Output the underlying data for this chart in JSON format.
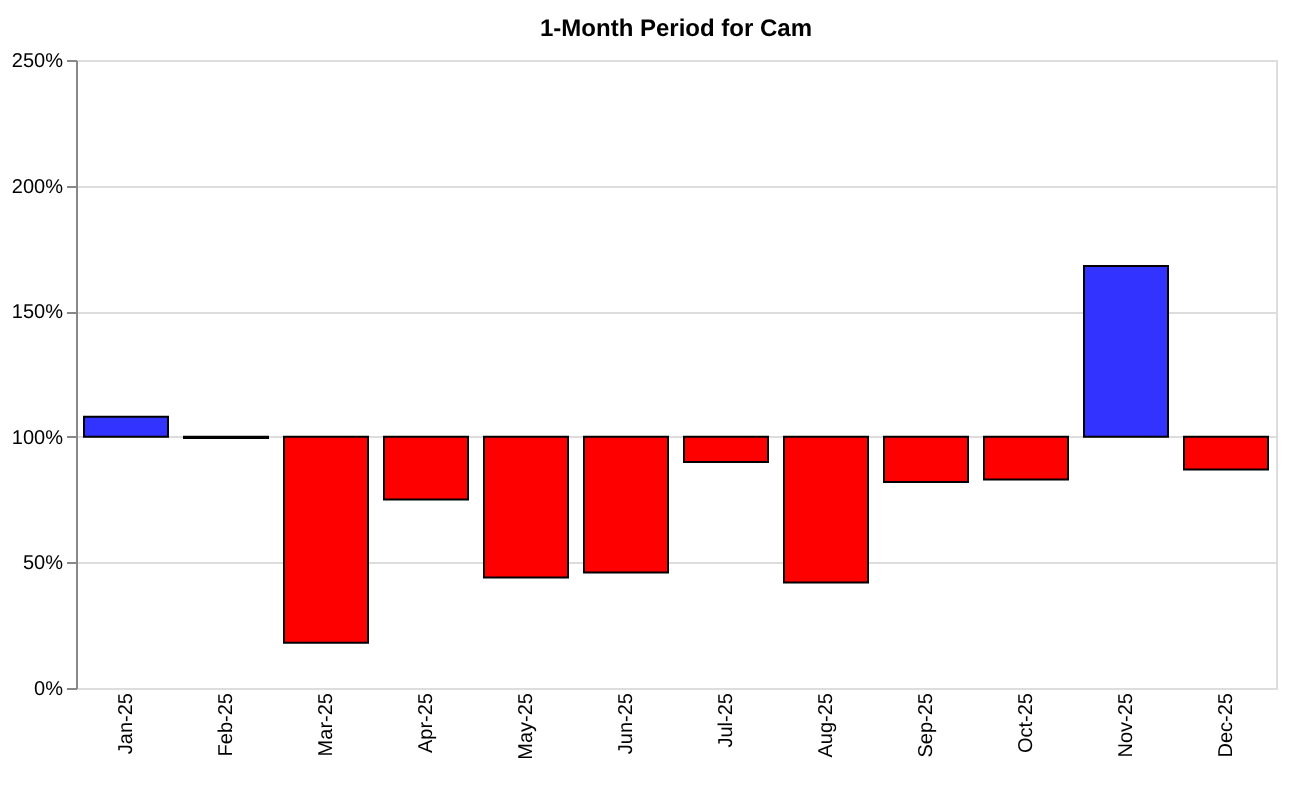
{
  "chart_data": {
    "type": "bar",
    "title": "1-Month Period for Cam",
    "categories": [
      "Jan-25",
      "Feb-25",
      "Mar-25",
      "Apr-25",
      "May-25",
      "Jun-25",
      "Jul-25",
      "Aug-25",
      "Sep-25",
      "Oct-25",
      "Nov-25",
      "Dec-25"
    ],
    "base": [
      100,
      100,
      100,
      100,
      100,
      100,
      100,
      100,
      100,
      100,
      100,
      100
    ],
    "values": [
      8,
      -0.5,
      -82,
      -25,
      -56,
      -54,
      -10,
      -58,
      -18,
      -17,
      68,
      -13
    ],
    "colors": [
      "#3333ff",
      "#ff0000",
      "#ff0000",
      "#ff0000",
      "#ff0000",
      "#ff0000",
      "#ff0000",
      "#ff0000",
      "#ff0000",
      "#ff0000",
      "#3333ff",
      "#ff0000"
    ],
    "ylim": [
      0,
      250
    ],
    "yticks": [
      {
        "value": 0,
        "label": "0%"
      },
      {
        "value": 50,
        "label": "50%"
      },
      {
        "value": 100,
        "label": "100%"
      },
      {
        "value": 150,
        "label": "150%"
      },
      {
        "value": 200,
        "label": "200%"
      },
      {
        "value": 250,
        "label": "250%"
      }
    ],
    "grid": "y"
  }
}
